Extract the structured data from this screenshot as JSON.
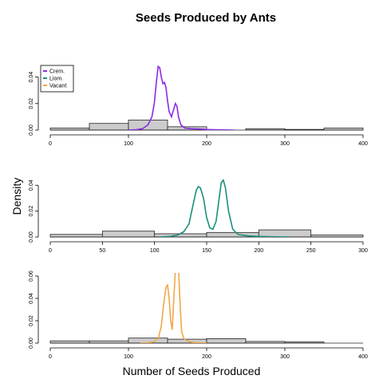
{
  "figure": {
    "title": "Seeds Produced by Ants",
    "xlabel": "Number of Seeds Produced",
    "ylabel": "Density"
  },
  "legend": {
    "placement": "top-left",
    "entries": [
      {
        "name": "Crem.",
        "color": "#8A2BE2"
      },
      {
        "name": "Liom.",
        "color": "#1A8F7A"
      },
      {
        "name": "Vacant",
        "color": "#F0A848"
      }
    ]
  },
  "chart_data": [
    {
      "type": "histogram+density",
      "series_name": "Crem.",
      "color": "#8A2BE2",
      "xlim": [
        0,
        400
      ],
      "ylim": [
        0,
        0.05
      ],
      "xticks": [
        0,
        100,
        200,
        300,
        400
      ],
      "yticks": [
        0.0,
        0.02,
        0.04
      ],
      "ytick_labels": [
        "0.00",
        "0.02",
        "0.04"
      ],
      "bins": [
        {
          "x0": 0,
          "x1": 50,
          "density": 0.0015
        },
        {
          "x0": 50,
          "x1": 100,
          "density": 0.005
        },
        {
          "x0": 100,
          "x1": 150,
          "density": 0.0075
        },
        {
          "x0": 150,
          "x1": 200,
          "density": 0.0025
        },
        {
          "x0": 200,
          "x1": 250,
          "density": 0.0
        },
        {
          "x0": 250,
          "x1": 300,
          "density": 0.001
        },
        {
          "x0": 300,
          "x1": 350,
          "density": 0.0005
        },
        {
          "x0": 350,
          "x1": 400,
          "density": 0.0015
        }
      ],
      "density_curve": [
        [
          100,
          0.0
        ],
        [
          110,
          0.0003
        ],
        [
          118,
          0.001
        ],
        [
          125,
          0.004
        ],
        [
          130,
          0.01
        ],
        [
          133,
          0.02
        ],
        [
          136,
          0.038
        ],
        [
          138,
          0.048
        ],
        [
          140,
          0.047
        ],
        [
          142,
          0.04
        ],
        [
          144,
          0.035
        ],
        [
          146,
          0.036
        ],
        [
          148,
          0.032
        ],
        [
          150,
          0.022
        ],
        [
          152,
          0.014
        ],
        [
          155,
          0.01
        ],
        [
          158,
          0.016
        ],
        [
          160,
          0.02
        ],
        [
          162,
          0.018
        ],
        [
          164,
          0.01
        ],
        [
          167,
          0.004
        ],
        [
          172,
          0.0015
        ],
        [
          180,
          0.001
        ],
        [
          190,
          0.0008
        ],
        [
          200,
          0.0004
        ],
        [
          215,
          0.0002
        ],
        [
          235,
          0.0
        ]
      ]
    },
    {
      "type": "histogram+density",
      "series_name": "Liom.",
      "color": "#1A8F7A",
      "xlim": [
        0,
        300
      ],
      "ylim": [
        0,
        0.05
      ],
      "xticks": [
        0,
        50,
        100,
        150,
        200,
        250,
        300
      ],
      "yticks": [
        0.0,
        0.02,
        0.04
      ],
      "ytick_labels": [
        "0.00",
        "0.02",
        "0.04"
      ],
      "bins": [
        {
          "x0": 0,
          "x1": 50,
          "density": 0.002
        },
        {
          "x0": 50,
          "x1": 100,
          "density": 0.0045
        },
        {
          "x0": 100,
          "x1": 150,
          "density": 0.0025
        },
        {
          "x0": 150,
          "x1": 200,
          "density": 0.0035
        },
        {
          "x0": 200,
          "x1": 250,
          "density": 0.0055
        },
        {
          "x0": 250,
          "x1": 300,
          "density": 0.0015
        }
      ],
      "density_curve": [
        [
          105,
          0.0
        ],
        [
          115,
          0.0004
        ],
        [
          122,
          0.0015
        ],
        [
          128,
          0.004
        ],
        [
          133,
          0.01
        ],
        [
          137,
          0.025
        ],
        [
          140,
          0.036
        ],
        [
          142,
          0.039
        ],
        [
          144,
          0.038
        ],
        [
          147,
          0.03
        ],
        [
          150,
          0.015
        ],
        [
          153,
          0.007
        ],
        [
          156,
          0.006
        ],
        [
          159,
          0.012
        ],
        [
          162,
          0.03
        ],
        [
          164,
          0.042
        ],
        [
          166,
          0.044
        ],
        [
          168,
          0.038
        ],
        [
          171,
          0.02
        ],
        [
          175,
          0.006
        ],
        [
          180,
          0.002
        ],
        [
          190,
          0.0008
        ],
        [
          200,
          0.0004
        ],
        [
          215,
          0.0001
        ],
        [
          230,
          0.0
        ]
      ]
    },
    {
      "type": "histogram+density",
      "series_name": "Vacant",
      "color": "#F0A848",
      "xlim": [
        0,
        400
      ],
      "ylim": [
        0,
        0.06
      ],
      "xticks": [
        0,
        100,
        200,
        300,
        400
      ],
      "yticks": [
        0.0,
        0.02,
        0.04,
        0.06
      ],
      "ytick_labels": [
        "0.00",
        "0.02",
        "0.04",
        "0.06"
      ],
      "bins": [
        {
          "x0": 0,
          "x1": 50,
          "density": 0.002
        },
        {
          "x0": 50,
          "x1": 100,
          "density": 0.002
        },
        {
          "x0": 100,
          "x1": 150,
          "density": 0.0045
        },
        {
          "x0": 150,
          "x1": 200,
          "density": 0.0035
        },
        {
          "x0": 200,
          "x1": 250,
          "density": 0.004
        },
        {
          "x0": 250,
          "x1": 300,
          "density": 0.0015
        },
        {
          "x0": 300,
          "x1": 350,
          "density": 0.001
        },
        {
          "x0": 350,
          "x1": 400,
          "density": 0.0
        }
      ],
      "density_curve": [
        [
          115,
          0.0
        ],
        [
          125,
          0.0003
        ],
        [
          132,
          0.001
        ],
        [
          138,
          0.004
        ],
        [
          142,
          0.015
        ],
        [
          145,
          0.035
        ],
        [
          148,
          0.05
        ],
        [
          150,
          0.052
        ],
        [
          152,
          0.04
        ],
        [
          154,
          0.02
        ],
        [
          156,
          0.012
        ],
        [
          158,
          0.04
        ],
        [
          160,
          0.065
        ],
        [
          162,
          0.07
        ],
        [
          164,
          0.068
        ],
        [
          166,
          0.035
        ],
        [
          168,
          0.01
        ],
        [
          171,
          0.004
        ],
        [
          175,
          0.002
        ],
        [
          180,
          0.0008
        ],
        [
          190,
          0.0002
        ],
        [
          200,
          0.0
        ]
      ]
    }
  ]
}
